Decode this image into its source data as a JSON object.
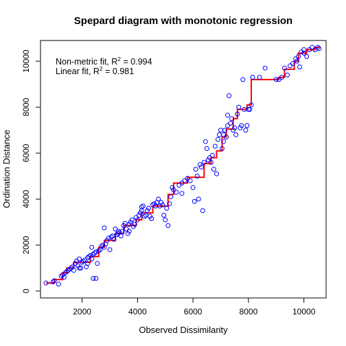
{
  "chart_data": {
    "type": "scatter",
    "title": "Spepard diagram with monotonic regression",
    "xlabel": "Observed Dissimilarity",
    "ylabel": "Ordination Distance",
    "xlim": [
      500,
      10800
    ],
    "ylim": [
      -300,
      10900
    ],
    "x_ticks": [
      2000,
      4000,
      6000,
      8000,
      10000
    ],
    "y_ticks": [
      0,
      2000,
      4000,
      6000,
      8000,
      10000
    ],
    "annotations": [
      {
        "label": "Non-metric fit, R",
        "sup": "2",
        "value": " = 0.994"
      },
      {
        "label": "Linear fit, R",
        "sup": "2",
        "value": " = 0.981"
      }
    ],
    "point_color": "#0000ff",
    "line_color": "#ff0000",
    "series": [
      {
        "type": "scatter",
        "points": [
          [
            700,
            350
          ],
          [
            950,
            400
          ],
          [
            1000,
            450
          ],
          [
            1150,
            300
          ],
          [
            1250,
            650
          ],
          [
            1300,
            700
          ],
          [
            1350,
            600
          ],
          [
            1400,
            800
          ],
          [
            1450,
            850
          ],
          [
            1500,
            900
          ],
          [
            1550,
            950
          ],
          [
            1600,
            1000
          ],
          [
            1650,
            1050
          ],
          [
            1700,
            900
          ],
          [
            1750,
            1200
          ],
          [
            1800,
            1300
          ],
          [
            1850,
            1100
          ],
          [
            1900,
            1400
          ],
          [
            1950,
            1000
          ],
          [
            2000,
            1250
          ],
          [
            2050,
            1300
          ],
          [
            2100,
            1350
          ],
          [
            2150,
            1050
          ],
          [
            2200,
            1450
          ],
          [
            2250,
            1500
          ],
          [
            2300,
            1550
          ],
          [
            2350,
            1400
          ],
          [
            2400,
            1600
          ],
          [
            2450,
            1650
          ],
          [
            2500,
            1700
          ],
          [
            2400,
            550
          ],
          [
            2500,
            550
          ],
          [
            2350,
            1900
          ],
          [
            2550,
            1200
          ],
          [
            2600,
            1750
          ],
          [
            2650,
            1800
          ],
          [
            2700,
            1950
          ],
          [
            2750,
            2000
          ],
          [
            2800,
            1900
          ],
          [
            2850,
            2050
          ],
          [
            2800,
            2750
          ],
          [
            2900,
            2200
          ],
          [
            2950,
            2300
          ],
          [
            3000,
            1800
          ],
          [
            3050,
            2350
          ],
          [
            3100,
            2400
          ],
          [
            3150,
            2250
          ],
          [
            3200,
            2700
          ],
          [
            3250,
            2450
          ],
          [
            3300,
            2500
          ],
          [
            3350,
            2550
          ],
          [
            3400,
            2400
          ],
          [
            3450,
            2600
          ],
          [
            3500,
            2850
          ],
          [
            3550,
            2950
          ],
          [
            3600,
            2700
          ],
          [
            3650,
            2500
          ],
          [
            3700,
            2900
          ],
          [
            3750,
            3000
          ],
          [
            3800,
            3100
          ],
          [
            3850,
            2800
          ],
          [
            3900,
            2900
          ],
          [
            3950,
            3200
          ],
          [
            4000,
            3100
          ],
          [
            4050,
            3300
          ],
          [
            4100,
            3400
          ],
          [
            4150,
            3650
          ],
          [
            4200,
            3700
          ],
          [
            4250,
            3250
          ],
          [
            4300,
            3300
          ],
          [
            4350,
            3500
          ],
          [
            4400,
            3600
          ],
          [
            4450,
            3250
          ],
          [
            4500,
            3150
          ],
          [
            4550,
            3750
          ],
          [
            4600,
            3800
          ],
          [
            4650,
            3700
          ],
          [
            4700,
            3850
          ],
          [
            4750,
            4000
          ],
          [
            4800,
            3700
          ],
          [
            4850,
            3850
          ],
          [
            4900,
            3750
          ],
          [
            4950,
            3300
          ],
          [
            5000,
            3100
          ],
          [
            5050,
            3600
          ],
          [
            5100,
            2850
          ],
          [
            5150,
            3800
          ],
          [
            5200,
            4100
          ],
          [
            5250,
            4500
          ],
          [
            5300,
            4400
          ],
          [
            5400,
            4300
          ],
          [
            5500,
            4600
          ],
          [
            5600,
            4700
          ],
          [
            5700,
            4800
          ],
          [
            5800,
            4900
          ],
          [
            5900,
            4800
          ],
          [
            6000,
            4500
          ],
          [
            6050,
            3900
          ],
          [
            6100,
            5300
          ],
          [
            6150,
            5000
          ],
          [
            6200,
            4000
          ],
          [
            6250,
            5500
          ],
          [
            6300,
            5400
          ],
          [
            6350,
            3500
          ],
          [
            6400,
            5600
          ],
          [
            6450,
            6500
          ],
          [
            6500,
            6200
          ],
          [
            6550,
            5700
          ],
          [
            6600,
            5800
          ],
          [
            6650,
            5600
          ],
          [
            6700,
            5900
          ],
          [
            6750,
            5300
          ],
          [
            6800,
            6300
          ],
          [
            6850,
            5100
          ],
          [
            6900,
            6600
          ],
          [
            6950,
            6800
          ],
          [
            7000,
            7000
          ],
          [
            7050,
            6200
          ],
          [
            7100,
            6500
          ],
          [
            7150,
            7000
          ],
          [
            7200,
            6700
          ],
          [
            7250,
            7200
          ],
          [
            7300,
            8500
          ],
          [
            7350,
            7300
          ],
          [
            7400,
            7500
          ],
          [
            7450,
            7000
          ],
          [
            7500,
            7100
          ],
          [
            7550,
            6800
          ],
          [
            7600,
            7700
          ],
          [
            7650,
            8000
          ],
          [
            7700,
            7100
          ],
          [
            7750,
            7200
          ],
          [
            7800,
            9200
          ],
          [
            7850,
            7900
          ],
          [
            7900,
            7000
          ],
          [
            7950,
            7200
          ],
          [
            8000,
            7900
          ],
          [
            8050,
            7900
          ],
          [
            8100,
            8100
          ],
          [
            8150,
            9300
          ],
          [
            9000,
            9200
          ],
          [
            9100,
            9200
          ],
          [
            9200,
            9300
          ],
          [
            9300,
            9700
          ],
          [
            9400,
            9400
          ],
          [
            9500,
            9800
          ],
          [
            9600,
            9900
          ],
          [
            9700,
            10100
          ],
          [
            9800,
            10200
          ],
          [
            9900,
            10400
          ],
          [
            10000,
            10500
          ],
          [
            10100,
            10200
          ],
          [
            10200,
            10500
          ],
          [
            10300,
            10600
          ],
          [
            10400,
            10500
          ],
          [
            10500,
            10600
          ],
          [
            10550,
            10550
          ],
          [
            10000,
            10350
          ],
          [
            9850,
            9750
          ],
          [
            9750,
            10000
          ],
          [
            8600,
            9700
          ],
          [
            8400,
            9300
          ],
          [
            1900,
            1000
          ],
          [
            2200,
            1200
          ],
          [
            3300,
            2600
          ],
          [
            3700,
            2600
          ],
          [
            4150,
            3500
          ],
          [
            5600,
            4250
          ],
          [
            7250,
            7650
          ],
          [
            7100,
            6800
          ]
        ]
      },
      {
        "type": "step-line",
        "points": [
          [
            700,
            350
          ],
          [
            1000,
            350
          ],
          [
            1000,
            500
          ],
          [
            1300,
            500
          ],
          [
            1300,
            800
          ],
          [
            1450,
            800
          ],
          [
            1450,
            1000
          ],
          [
            1700,
            1000
          ],
          [
            1700,
            1250
          ],
          [
            2300,
            1250
          ],
          [
            2300,
            1500
          ],
          [
            2600,
            1500
          ],
          [
            2600,
            1900
          ],
          [
            2800,
            1900
          ],
          [
            2800,
            2200
          ],
          [
            3200,
            2200
          ],
          [
            3200,
            2500
          ],
          [
            3500,
            2500
          ],
          [
            3500,
            2850
          ],
          [
            3950,
            2850
          ],
          [
            3950,
            3100
          ],
          [
            4150,
            3100
          ],
          [
            4150,
            3400
          ],
          [
            4550,
            3400
          ],
          [
            4550,
            3700
          ],
          [
            5100,
            3700
          ],
          [
            5100,
            4200
          ],
          [
            5300,
            4200
          ],
          [
            5300,
            4700
          ],
          [
            5800,
            4700
          ],
          [
            5800,
            4950
          ],
          [
            6400,
            4950
          ],
          [
            6400,
            5550
          ],
          [
            6650,
            5550
          ],
          [
            6650,
            5800
          ],
          [
            6850,
            5800
          ],
          [
            6850,
            6100
          ],
          [
            7050,
            6100
          ],
          [
            7050,
            6700
          ],
          [
            7200,
            6700
          ],
          [
            7200,
            7050
          ],
          [
            7450,
            7050
          ],
          [
            7450,
            7500
          ],
          [
            7600,
            7500
          ],
          [
            7600,
            7900
          ],
          [
            7950,
            7900
          ],
          [
            7950,
            8100
          ],
          [
            8100,
            8100
          ],
          [
            8100,
            9200
          ],
          [
            9100,
            9200
          ],
          [
            9100,
            9300
          ],
          [
            9300,
            9300
          ],
          [
            9300,
            9650
          ],
          [
            9650,
            9650
          ],
          [
            9650,
            10000
          ],
          [
            9800,
            10000
          ],
          [
            9800,
            10350
          ],
          [
            10100,
            10350
          ],
          [
            10100,
            10500
          ],
          [
            10400,
            10500
          ],
          [
            10400,
            10600
          ],
          [
            10550,
            10600
          ]
        ]
      }
    ]
  }
}
